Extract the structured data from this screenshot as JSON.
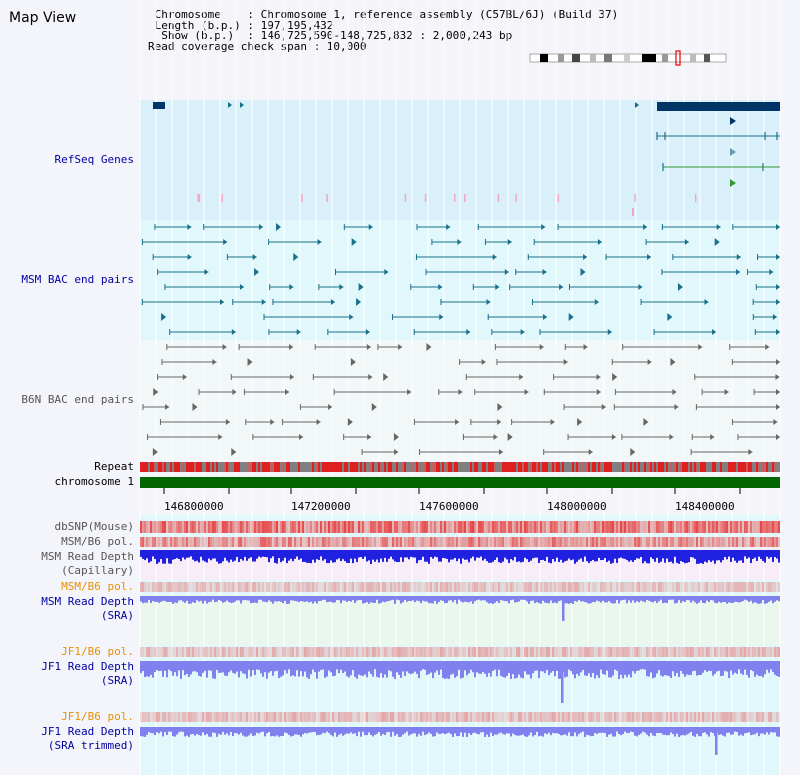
{
  "page": {
    "title": "Map View"
  },
  "header": {
    "lines": [
      " Chromosome    : Chromosome 1, reference assembly (C57BL/6J) (Build 37)",
      " Length (b.p.) : 197,195,432",
      "  Show (b.p.)  : 146,725,590-148,725,832 : 2,000,243 bp",
      "Read coverage check span : 10,000"
    ]
  },
  "tracks": {
    "refseq": "RefSeq Genes",
    "msm_bac": "MSM BAC end pairs",
    "b6n_bac": "B6N BAC end pairs",
    "repeat": "Repeat",
    "chromosome": "chromosome 1",
    "dbsnp": "dbSNP(Mouse)",
    "msm_b6_pol_1": "MSM/B6 pol.",
    "msm_read_depth_cap_1": "MSM Read Depth",
    "msm_read_depth_cap_2": "(Capillary)",
    "msm_b6_pol_2": "MSM/B6 pol.",
    "msm_read_depth_sra_1": "MSM Read Depth",
    "msm_read_depth_sra_2": "(SRA)",
    "jf1_b6_pol_1": "JF1/B6 pol.",
    "jf1_read_depth_sra_1": "JF1 Read Depth",
    "jf1_read_depth_sra_2": "(SRA)",
    "jf1_b6_pol_2": "JF1/B6 pol.",
    "jf1_read_depth_trim_1": "JF1 Read Depth",
    "jf1_read_depth_trim_2": "(SRA trimmed)"
  },
  "axis": {
    "ticks": [
      "146800000",
      "147200000",
      "147600000",
      "148000000",
      "148400000"
    ]
  },
  "colors": {
    "refseq_bg": "#d9f0fb",
    "bac_bg": "#e0f8fb",
    "chromosome": "#006400",
    "gene": "#003366",
    "bac_msm": "#1a6f8a",
    "bac_b6n": "#666666",
    "snp": "#e83030",
    "depth_capillary": "#2020e0",
    "depth_sra": "#8080ee"
  }
}
